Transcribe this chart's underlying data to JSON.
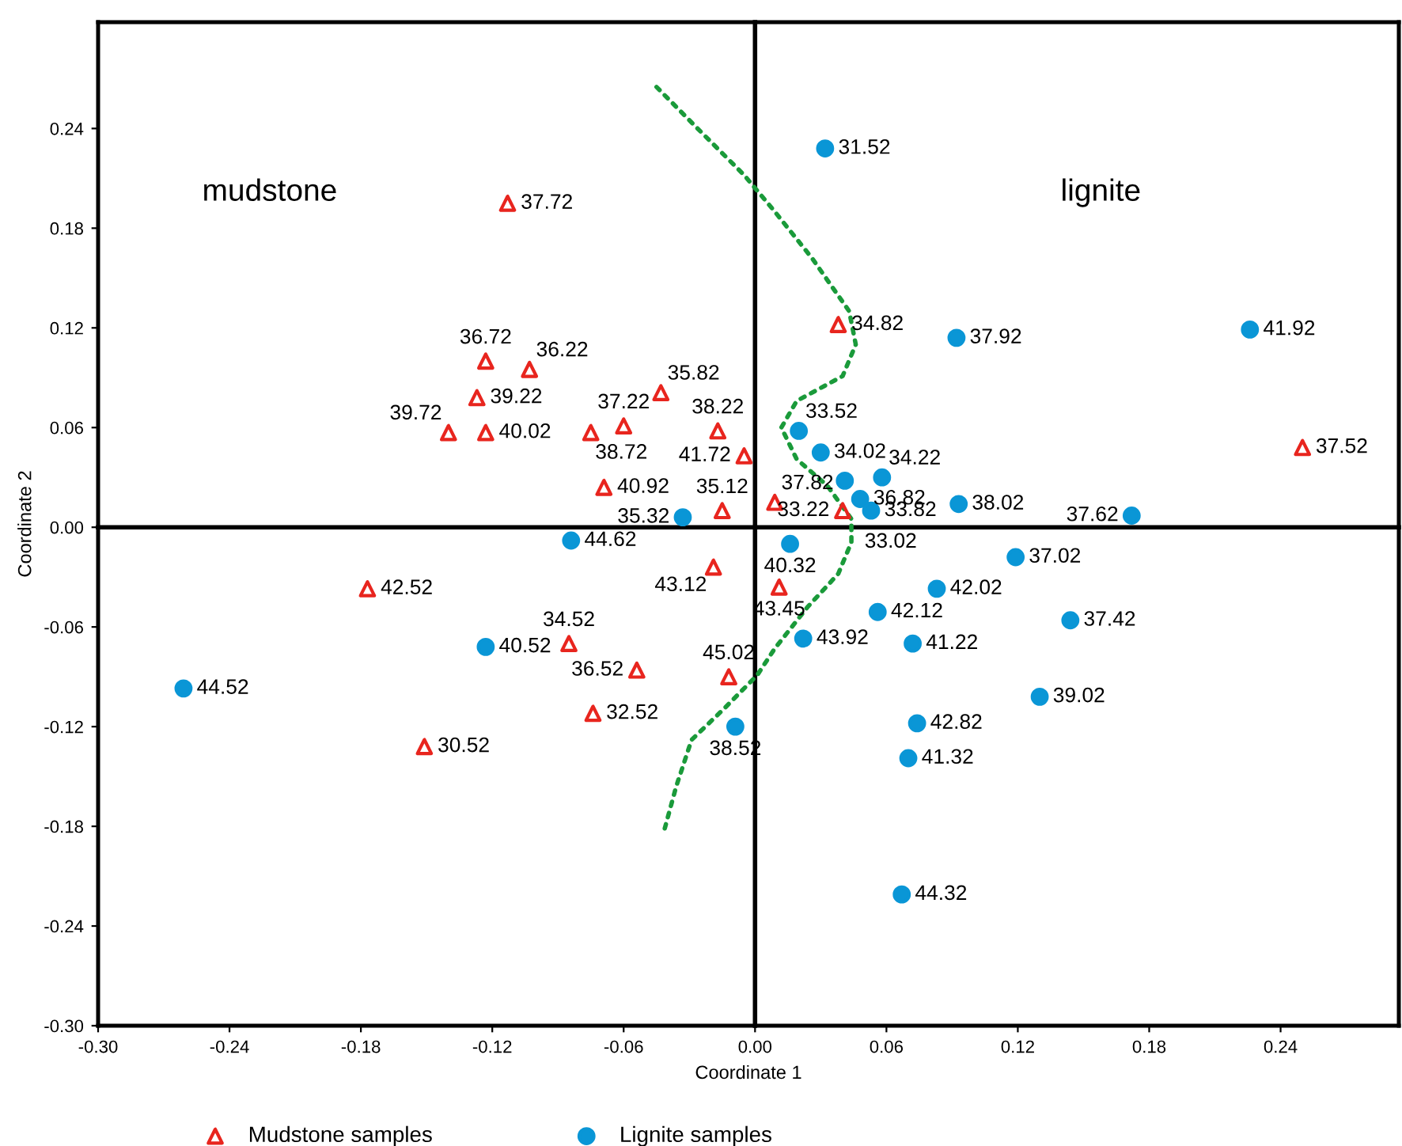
{
  "chart_data": {
    "type": "scatter",
    "xlabel": "Coordinate 1",
    "ylabel": "Coordinate 2",
    "xlim": [
      -0.3,
      0.294
    ],
    "ylim": [
      -0.3,
      0.304
    ],
    "xticks": [
      {
        "value": -0.3,
        "label": "-0.30"
      },
      {
        "value": -0.24,
        "label": "-0.24"
      },
      {
        "value": -0.18,
        "label": "-0.18"
      },
      {
        "value": -0.12,
        "label": "-0.12"
      },
      {
        "value": -0.06,
        "label": "-0.06"
      },
      {
        "value": 0.0,
        "label": "0.00"
      },
      {
        "value": 0.06,
        "label": "0.06"
      },
      {
        "value": 0.12,
        "label": "0.12"
      },
      {
        "value": 0.18,
        "label": "0.18"
      },
      {
        "value": 0.24,
        "label": "0.24"
      }
    ],
    "yticks": [
      {
        "value": -0.3,
        "label": "-0.30"
      },
      {
        "value": -0.24,
        "label": "-0.24"
      },
      {
        "value": -0.18,
        "label": "-0.18"
      },
      {
        "value": -0.12,
        "label": "-0.12"
      },
      {
        "value": -0.06,
        "label": "-0.06"
      },
      {
        "value": 0.0,
        "label": "0.00"
      },
      {
        "value": 0.06,
        "label": "0.06"
      },
      {
        "value": 0.12,
        "label": "0.12"
      },
      {
        "value": 0.18,
        "label": "0.18"
      },
      {
        "value": 0.24,
        "label": "0.24"
      }
    ],
    "grid": false,
    "legend": "bottom",
    "series": [
      {
        "name": "Mudstone samples",
        "color": "#e8251e",
        "marker": "triangle",
        "x": [
          -0.113,
          -0.123,
          -0.103,
          -0.127,
          -0.14,
          -0.123,
          -0.075,
          -0.06,
          -0.043,
          -0.017,
          -0.005,
          -0.069,
          -0.015,
          0.038,
          0.009,
          0.04,
          0.25,
          -0.177,
          -0.085,
          -0.054,
          -0.074,
          -0.151,
          -0.019,
          -0.012,
          0.011
        ],
        "values": [
          0.195,
          0.1,
          0.095,
          0.078,
          0.057,
          0.057,
          0.057,
          0.061,
          0.081,
          0.058,
          0.043,
          0.024,
          0.01,
          0.122,
          0.015,
          0.01,
          0.048,
          -0.037,
          -0.07,
          -0.086,
          -0.112,
          -0.132,
          -0.024,
          -0.09,
          -0.036
        ]
      },
      {
        "name": "Lignite samples",
        "color": "#0a96d6",
        "marker": "circle",
        "x": [
          0.032,
          0.092,
          0.226,
          0.02,
          0.03,
          0.058,
          0.041,
          0.048,
          0.053,
          0.093,
          0.172,
          -0.033,
          -0.084,
          -0.261,
          -0.123,
          -0.009,
          0.016,
          0.119,
          0.083,
          0.056,
          0.144,
          0.022,
          0.072,
          0.13,
          0.074,
          0.07,
          0.067
        ],
        "values": [
          0.228,
          0.114,
          0.119,
          0.058,
          0.045,
          0.03,
          0.028,
          0.017,
          0.01,
          0.014,
          0.007,
          0.006,
          -0.008,
          -0.097,
          -0.072,
          -0.12,
          -0.01,
          -0.018,
          -0.037,
          -0.051,
          -0.056,
          -0.067,
          -0.07,
          -0.102,
          -0.118,
          -0.139,
          -0.221
        ]
      },
      {
        "type": "line",
        "color": "#000000",
        "line_style": "solid",
        "marker": "none",
        "x": [
          0,
          0
        ],
        "values": [
          -0.3,
          0.304
        ]
      },
      {
        "type": "line",
        "color": "#000000",
        "line_style": "solid",
        "marker": "none",
        "x": [
          -0.3,
          0.294
        ],
        "values": [
          0,
          0
        ]
      },
      {
        "type": "line",
        "color": "#1a9a3a",
        "line_style": "dotted",
        "marker": "none",
        "x": [
          -0.045,
          -0.027,
          -0.005,
          0.009,
          0.026,
          0.043,
          0.046,
          0.04,
          0.019,
          0.012,
          0.019,
          0.033,
          0.044,
          0.044,
          0.038,
          0.024,
          0.009,
          0.001,
          -0.014,
          -0.029,
          -0.036,
          -0.042
        ],
        "values": [
          0.265,
          0.241,
          0.212,
          0.19,
          0.162,
          0.13,
          0.11,
          0.091,
          0.076,
          0.06,
          0.041,
          0.025,
          0.005,
          -0.009,
          -0.028,
          -0.048,
          -0.073,
          -0.089,
          -0.109,
          -0.128,
          -0.156,
          -0.185
        ]
      }
    ],
    "annotations": [
      "mudstone",
      "lignite",
      {
        "text": "37.72",
        "x": -0.113,
        "y": 0.195
      },
      {
        "text": "36.72",
        "x": -0.123,
        "y": 0.1
      },
      {
        "text": "36.22",
        "x": -0.103,
        "y": 0.095
      },
      {
        "text": "39.22",
        "x": -0.127,
        "y": 0.078
      },
      {
        "text": "39.72",
        "x": -0.14,
        "y": 0.057
      },
      {
        "text": "40.02",
        "x": -0.123,
        "y": 0.057
      },
      {
        "text": "37.22",
        "x": -0.06,
        "y": 0.061
      },
      {
        "text": "38.72",
        "x": -0.075,
        "y": 0.057
      },
      {
        "text": "35.82",
        "x": -0.043,
        "y": 0.081
      },
      {
        "text": "38.22",
        "x": -0.017,
        "y": 0.058
      },
      {
        "text": "41.72",
        "x": -0.005,
        "y": 0.043
      },
      {
        "text": "40.92",
        "x": -0.069,
        "y": 0.024
      },
      {
        "text": "35.12",
        "x": -0.015,
        "y": 0.01
      },
      {
        "text": "35.32",
        "x": -0.033,
        "y": 0.006
      },
      {
        "text": "31.52",
        "x": 0.032,
        "y": 0.228
      },
      {
        "text": "34.82",
        "x": 0.038,
        "y": 0.122
      },
      {
        "text": "37.92",
        "x": 0.092,
        "y": 0.114
      },
      {
        "text": "41.92",
        "x": 0.226,
        "y": 0.119
      },
      {
        "text": "37.52",
        "x": 0.25,
        "y": 0.048
      },
      {
        "text": "33.52",
        "x": 0.02,
        "y": 0.058
      },
      {
        "text": "34.02",
        "x": 0.03,
        "y": 0.045
      },
      {
        "text": "34.22",
        "x": 0.058,
        "y": 0.03
      },
      {
        "text": "37.82",
        "x": 0.009,
        "y": 0.015
      },
      {
        "text": "36.82",
        "x": 0.048,
        "y": 0.017
      },
      {
        "text": "38.02",
        "x": 0.093,
        "y": 0.014
      },
      {
        "text": "33.22",
        "x": 0.04,
        "y": 0.01
      },
      {
        "text": "33.82",
        "x": 0.053,
        "y": 0.01
      },
      {
        "text": "37.62",
        "x": 0.172,
        "y": 0.007
      },
      {
        "text": "44.62",
        "x": -0.084,
        "y": -0.008
      },
      {
        "text": "42.52",
        "x": -0.177,
        "y": -0.037
      },
      {
        "text": "43.12",
        "x": -0.019,
        "y": -0.024
      },
      {
        "text": "34.52",
        "x": -0.085,
        "y": -0.07
      },
      {
        "text": "40.52",
        "x": -0.123,
        "y": -0.072
      },
      {
        "text": "36.52",
        "x": -0.054,
        "y": -0.086
      },
      {
        "text": "45.02",
        "x": -0.012,
        "y": -0.09
      },
      {
        "text": "44.52",
        "x": -0.261,
        "y": -0.097
      },
      {
        "text": "32.52",
        "x": -0.074,
        "y": -0.112
      },
      {
        "text": "38.52",
        "x": -0.009,
        "y": -0.12
      },
      {
        "text": "30.52",
        "x": -0.151,
        "y": -0.132
      },
      {
        "text": "33.02",
        "x": 0.044,
        "y": -0.009
      },
      {
        "text": "40.32",
        "x": 0.016,
        "y": -0.01
      },
      {
        "text": "43.45",
        "x": 0.011,
        "y": -0.036
      },
      {
        "text": "37.02",
        "x": 0.119,
        "y": -0.018
      },
      {
        "text": "42.02",
        "x": 0.083,
        "y": -0.037
      },
      {
        "text": "42.12",
        "x": 0.056,
        "y": -0.051
      },
      {
        "text": "37.42",
        "x": 0.144,
        "y": -0.056
      },
      {
        "text": "43.92",
        "x": 0.022,
        "y": -0.067
      },
      {
        "text": "41.22",
        "x": 0.072,
        "y": -0.07
      },
      {
        "text": "39.02",
        "x": 0.13,
        "y": -0.102
      },
      {
        "text": "42.82",
        "x": 0.074,
        "y": -0.118
      },
      {
        "text": "41.32",
        "x": 0.07,
        "y": -0.139
      },
      {
        "text": "44.32",
        "x": 0.067,
        "y": -0.221
      }
    ]
  }
}
